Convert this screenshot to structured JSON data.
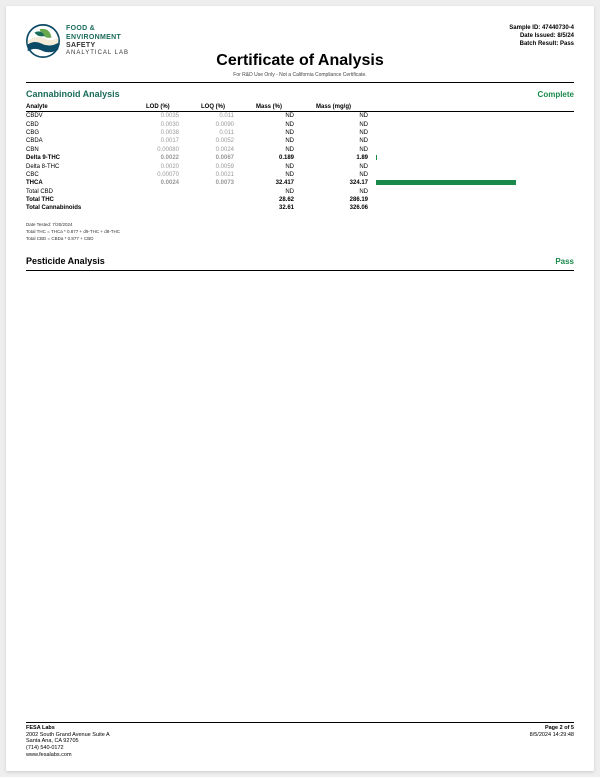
{
  "logo": {
    "line1": "FOOD &",
    "line2": "ENVIRONMENT",
    "line3": "SAFETY",
    "line4": "ANALYTICAL LAB",
    "colors": {
      "dark_blue": "#0d4a66",
      "teal": "#1a6b5a",
      "green": "#6aa84f",
      "cream": "#f4ecd8"
    }
  },
  "meta": {
    "sample_id": "Sample ID: 47440730-4",
    "date_issued": "Date Issued: 8/5/24",
    "batch_result": "Batch Result: Pass"
  },
  "title": "Certificate of Analysis",
  "subtitle": "For R&D Use Only - Not a California Compliance Certificate.",
  "cannabinoid": {
    "title": "Cannabinoid Analysis",
    "status": "Complete",
    "headers": {
      "analyte": "Analyte",
      "lod": "LOD (%)",
      "loq": "LOQ (%)",
      "mass": "Mass (%)",
      "massmg": "Mass (mg/g)"
    },
    "rows": [
      {
        "analyte": "CBDV",
        "lod": "0.0035",
        "loq": "0.011",
        "mass": "ND",
        "massmg": "ND",
        "bar": 0,
        "bold": false
      },
      {
        "analyte": "CBD",
        "lod": "0.0030",
        "loq": "0.0090",
        "mass": "ND",
        "massmg": "ND",
        "bar": 0,
        "bold": false
      },
      {
        "analyte": "CBG",
        "lod": "0.0038",
        "loq": "0.011",
        "mass": "ND",
        "massmg": "ND",
        "bar": 0,
        "bold": false
      },
      {
        "analyte": "CBDA",
        "lod": "0.0017",
        "loq": "0.0052",
        "mass": "ND",
        "massmg": "ND",
        "bar": 0,
        "bold": false
      },
      {
        "analyte": "CBN",
        "lod": "0.00080",
        "loq": "0.0024",
        "mass": "ND",
        "massmg": "ND",
        "bar": 0,
        "bold": false
      },
      {
        "analyte": "Delta 9-THC",
        "lod": "0.0022",
        "loq": "0.0067",
        "mass": "0.189",
        "massmg": "1.89",
        "bar": 1,
        "bold": true
      },
      {
        "analyte": "Delta 8-THC",
        "lod": "0.0020",
        "loq": "0.0059",
        "mass": "ND",
        "massmg": "ND",
        "bar": 0,
        "bold": false
      },
      {
        "analyte": "CBC",
        "lod": "0.00070",
        "loq": "0.0021",
        "mass": "ND",
        "massmg": "ND",
        "bar": 0,
        "bold": false
      },
      {
        "analyte": "THCA",
        "lod": "0.0024",
        "loq": "0.0073",
        "mass": "32.417",
        "massmg": "324.17",
        "bar": 140,
        "bold": true
      },
      {
        "analyte": "Total CBD",
        "lod": "",
        "loq": "",
        "mass": "ND",
        "massmg": "ND",
        "bar": 0,
        "bold": false
      },
      {
        "analyte": "Total THC",
        "lod": "",
        "loq": "",
        "mass": "28.62",
        "massmg": "286.19",
        "bar": 0,
        "bold": true
      },
      {
        "analyte": "Total Cannabinoids",
        "lod": "",
        "loq": "",
        "mass": "32.61",
        "massmg": "326.06",
        "bar": 0,
        "bold": true
      }
    ],
    "bar_color": "#1a8a4a"
  },
  "notes": {
    "line1": "Date Tested: 7/30/2024",
    "line2": "Total THC = THCa * 0.877 + d9-THC + d8-THC",
    "line3": "Total CBD = CBDa * 0.877 + CBD"
  },
  "pesticide": {
    "title": "Pesticide Analysis",
    "status": "Pass"
  },
  "footer": {
    "company": "FESA Labs",
    "addr1": "2002 South Grand Avenue Suite A",
    "addr2": "Santa Ana, CA 92705",
    "phone": "(714) 540-0172",
    "website": "www.fesalabs.com",
    "page": "Page 2 of 5",
    "timestamp": "8/5/2024 14:29:48"
  }
}
